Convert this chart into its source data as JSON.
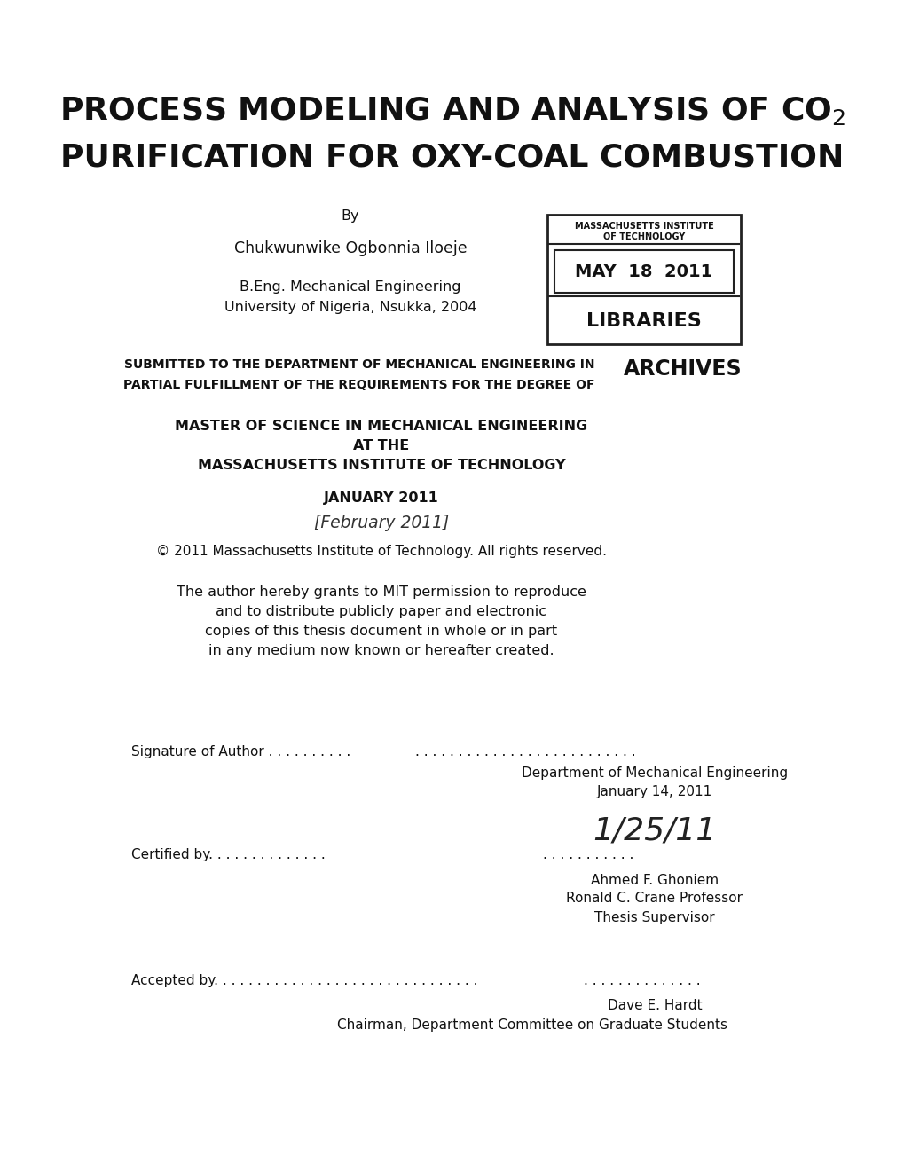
{
  "bg_color": "#ffffff",
  "title_line1_math": "PROCESS MODELING AND ANALYSIS OF CO$_2$",
  "title_line2": "PURIFICATION FOR OXY-COAL COMBUSTION",
  "by_text": "By",
  "author_name": "Chukwunwike Ogbonnia Iloeje",
  "degree_line1": "B.Eng. Mechanical Engineering",
  "degree_line2": "University of Nigeria, Nsukka, 2004",
  "submitted_line1": "SUBMITTED TO THE DEPARTMENT OF MECHANICAL ENGINEERING IN",
  "submitted_line2": "PARTIAL FULFILLMENT OF THE REQUIREMENTS FOR THE DEGREE OF",
  "archives_text": "ARCHIVES",
  "master_line1": "MASTER OF SCIENCE IN MECHANICAL ENGINEERING",
  "master_line2": "AT THE",
  "master_line3": "MASSACHUSETTS INSTITUTE OF TECHNOLOGY",
  "january_text": "JANUARY 2011",
  "handwritten_date": "[February 2011]",
  "copyright_text": "© 2011 Massachusetts Institute of Technology. All rights reserved.",
  "permission_line1": "The author hereby grants to MIT permission to reproduce",
  "permission_line2": "and to distribute publicly paper and electronic",
  "permission_line3": "copies of this thesis document in whole or in part",
  "permission_line4": "in any medium now known or hereafter created.",
  "sig_author_label": "Signature of Author . . . . . . . . . .",
  "sig_author_dots": ". . . . . . . . . . . . . . . . . . . . . . . . . .",
  "sig_dept": "Department of Mechanical Engineering",
  "sig_date": "January 14, 2011",
  "handwritten_sig": "1/25/11",
  "certified_label": "Certified by. . . . . . . . . . . . . .",
  "certified_dots": ". . . . . . . . . . .",
  "certified_name": "Ahmed F. Ghoniem",
  "certified_title1": "Ronald C. Crane Professor",
  "certified_title2": "Thesis Supervisor",
  "accepted_label": "Accepted by. . . . . . . . . . . . . . . . . . . . . . . . . . . . . . .",
  "accepted_dots": ". . . . . . . . . . . . . .",
  "accepted_name": "Dave E. Hardt",
  "accepted_title": "Chairman, Department Committee on Graduate Students",
  "stamp_line1": "MASSACHUSETTS INSTITUTE",
  "stamp_line2": "OF TECHNOLOGY",
  "stamp_date": "MAY  18  2011",
  "stamp_libraries": "LIBRARIES",
  "fig_width": 10.2,
  "fig_height": 13.2,
  "dpi": 100
}
